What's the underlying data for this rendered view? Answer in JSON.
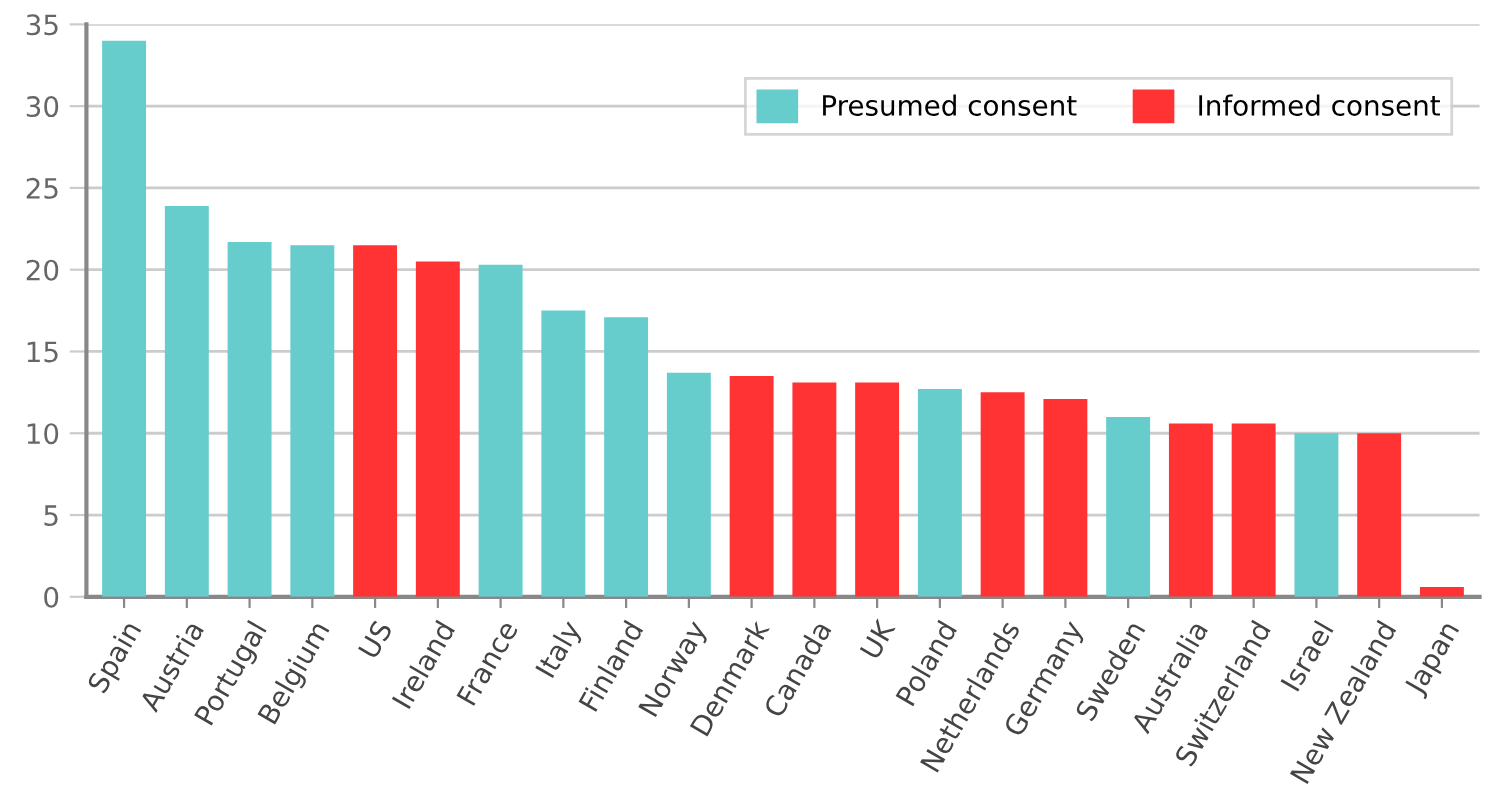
{
  "chart_data": {
    "type": "bar",
    "categories": [
      "Spain",
      "Austria",
      "Portugal",
      "Belgium",
      "US",
      "Ireland",
      "France",
      "Italy",
      "Finland",
      "Norway",
      "Denmark",
      "Canada",
      "UK",
      "Poland",
      "Netherlands",
      "Germany",
      "Sweden",
      "Australia",
      "Switzerland",
      "Israel",
      "New Zealand",
      "Japan"
    ],
    "series": [
      {
        "name": "Presumed consent",
        "color": "#66cccc",
        "values": [
          34.0,
          23.9,
          21.7,
          21.5,
          null,
          null,
          20.3,
          17.5,
          17.1,
          13.7,
          null,
          null,
          null,
          12.7,
          null,
          null,
          11.0,
          null,
          null,
          10.0,
          null,
          null
        ]
      },
      {
        "name": "Informed consent",
        "color": "#ff3333",
        "values": [
          null,
          null,
          null,
          null,
          21.5,
          20.5,
          null,
          null,
          null,
          null,
          13.5,
          13.1,
          13.1,
          null,
          12.5,
          12.1,
          null,
          10.6,
          10.6,
          null,
          10.0,
          0.6
        ]
      }
    ],
    "ylim": [
      0,
      35
    ],
    "yticks": [
      0,
      5,
      10,
      15,
      20,
      25,
      30,
      35
    ],
    "grid": "y",
    "legend": "top right"
  }
}
